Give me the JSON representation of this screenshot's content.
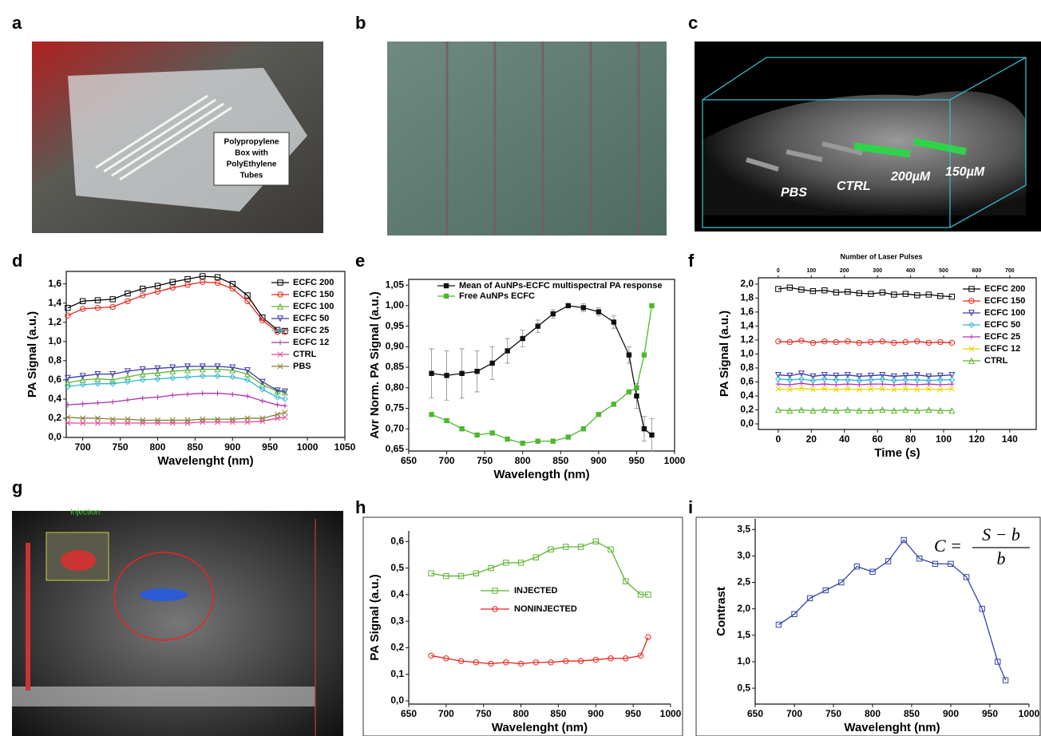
{
  "panel_labels": [
    "a",
    "b",
    "c",
    "d",
    "e",
    "f",
    "g",
    "h",
    "i"
  ],
  "photo_a": {
    "caption": [
      "Polypropylene",
      "Box with",
      "PolyEthylene",
      "Tubes"
    ]
  },
  "image_c": {
    "labels": [
      "PBS",
      "CTRL",
      "200µM",
      "150µM"
    ]
  },
  "image_g": {
    "label": "Injection"
  },
  "chart_data": [
    {
      "type": "line",
      "xlabel": "Wavelenght (nm)",
      "ylabel": "PA Signal (a.u.)",
      "x": [
        680,
        700,
        720,
        740,
        760,
        780,
        800,
        820,
        840,
        860,
        880,
        900,
        920,
        940,
        960,
        970
      ],
      "xlim": [
        678,
        1050
      ],
      "xticks": [
        700,
        750,
        800,
        850,
        900,
        950,
        1000,
        1050
      ],
      "ylim": [
        0,
        1.73
      ],
      "yticks": [
        {
          "value": 0,
          "label": "0,0"
        },
        {
          "value": 0.2,
          "label": "0,2"
        },
        {
          "value": 0.4,
          "label": "0,4"
        },
        {
          "value": 0.6,
          "label": "0,6"
        },
        {
          "value": 0.8,
          "label": "0,8"
        },
        {
          "value": 1.0,
          "label": "1,0"
        },
        {
          "value": 1.2,
          "label": "1,2"
        },
        {
          "value": 1.4,
          "label": "1,4"
        },
        {
          "value": 1.6,
          "label": "1,6"
        }
      ],
      "legend": "upper-right",
      "series": [
        {
          "name": "ECFC 200",
          "color": "#000000",
          "marker": "square",
          "values": [
            1.35,
            1.42,
            1.43,
            1.44,
            1.5,
            1.55,
            1.58,
            1.62,
            1.65,
            1.68,
            1.67,
            1.6,
            1.48,
            1.25,
            1.12,
            1.11
          ]
        },
        {
          "name": "ECFC 150",
          "color": "#e8261c",
          "marker": "circle",
          "values": [
            1.27,
            1.34,
            1.35,
            1.36,
            1.42,
            1.48,
            1.52,
            1.56,
            1.59,
            1.62,
            1.61,
            1.55,
            1.42,
            1.22,
            1.1,
            1.1
          ]
        },
        {
          "name": "ECFC 100",
          "color": "#5ab52e",
          "marker": "triangle",
          "values": [
            0.57,
            0.6,
            0.61,
            0.6,
            0.63,
            0.66,
            0.67,
            0.69,
            0.7,
            0.71,
            0.71,
            0.7,
            0.66,
            0.55,
            0.48,
            0.47
          ]
        },
        {
          "name": "ECFC 50",
          "color": "#3a3aa8",
          "marker": "triangle-down",
          "values": [
            0.62,
            0.64,
            0.66,
            0.66,
            0.69,
            0.71,
            0.72,
            0.73,
            0.74,
            0.74,
            0.74,
            0.73,
            0.7,
            0.58,
            0.49,
            0.48
          ]
        },
        {
          "name": "ECFC 25",
          "color": "#36b8d0",
          "marker": "diamond",
          "values": [
            0.53,
            0.55,
            0.56,
            0.56,
            0.58,
            0.6,
            0.61,
            0.62,
            0.63,
            0.64,
            0.64,
            0.63,
            0.6,
            0.5,
            0.42,
            0.4
          ]
        },
        {
          "name": "ECFC 12",
          "color": "#b030b0",
          "marker": "plus",
          "values": [
            0.34,
            0.35,
            0.36,
            0.37,
            0.39,
            0.41,
            0.42,
            0.44,
            0.45,
            0.46,
            0.46,
            0.45,
            0.43,
            0.38,
            0.34,
            0.33
          ]
        },
        {
          "name": "CTRL",
          "color": "#e8479a",
          "marker": "cross",
          "values": [
            0.15,
            0.15,
            0.15,
            0.15,
            0.15,
            0.15,
            0.15,
            0.15,
            0.15,
            0.16,
            0.16,
            0.16,
            0.16,
            0.17,
            0.2,
            0.21
          ]
        },
        {
          "name": "PBS",
          "color": "#808030",
          "marker": "cross",
          "values": [
            0.21,
            0.2,
            0.2,
            0.19,
            0.19,
            0.18,
            0.18,
            0.18,
            0.18,
            0.19,
            0.19,
            0.19,
            0.2,
            0.2,
            0.24,
            0.26
          ]
        }
      ]
    },
    {
      "type": "line",
      "xlabel": "Wavelength (nm)",
      "ylabel": "Avr Norm. PA Signal (a.u.)",
      "x": [
        680,
        700,
        720,
        740,
        760,
        780,
        800,
        820,
        840,
        860,
        880,
        900,
        920,
        940,
        950,
        960,
        970
      ],
      "xlim": [
        650,
        1000
      ],
      "xticks": [
        650,
        700,
        750,
        800,
        850,
        900,
        950,
        1000
      ],
      "ylim": [
        0.646,
        1.064
      ],
      "yticks": [
        {
          "value": 0.65,
          "label": "0,65"
        },
        {
          "value": 0.7,
          "label": "0,70"
        },
        {
          "value": 0.75,
          "label": "0,75"
        },
        {
          "value": 0.8,
          "label": "0,80"
        },
        {
          "value": 0.85,
          "label": "0,85"
        },
        {
          "value": 0.9,
          "label": "0,90"
        },
        {
          "value": 0.95,
          "label": "0,95"
        },
        {
          "value": 1.0,
          "label": "1,00"
        },
        {
          "value": 1.05,
          "label": "1,05"
        }
      ],
      "legend": "upper-left",
      "series": [
        {
          "name": "Mean of AuNPs-ECFC multispectral PA response",
          "color": "#111111",
          "marker": "filled-square",
          "values": [
            0.835,
            0.83,
            0.835,
            0.84,
            0.86,
            0.89,
            0.92,
            0.95,
            0.98,
            1.0,
            0.995,
            0.985,
            0.96,
            0.88,
            0.78,
            0.7,
            0.685
          ],
          "errors": [
            0.06,
            0.06,
            0.06,
            0.05,
            0.04,
            0.03,
            0.02,
            0.015,
            0.01,
            0.005,
            0.01,
            0.01,
            0.015,
            0.02,
            0.03,
            0.03,
            0.04
          ]
        },
        {
          "name": "Free AuNPs ECFC",
          "color": "#4cb82e",
          "marker": "filled-square",
          "values": [
            0.735,
            0.72,
            0.7,
            0.685,
            0.69,
            0.675,
            0.665,
            0.67,
            0.67,
            0.68,
            0.7,
            0.735,
            0.76,
            0.79,
            0.8,
            0.88,
            1.0
          ]
        }
      ]
    },
    {
      "type": "line",
      "xlabel": "Time (s)",
      "ylabel": "PA Signal (a.u.)",
      "x2label": "Number of Laser Pulses",
      "x": [
        0,
        7,
        14,
        21,
        28,
        35,
        42,
        49,
        56,
        63,
        70,
        77,
        84,
        91,
        98,
        105
      ],
      "xlim": [
        -12,
        156
      ],
      "xticks": [
        0,
        20,
        40,
        60,
        80,
        100,
        120,
        140
      ],
      "x2lim": [
        -60,
        780
      ],
      "x2ticks": [
        0,
        100,
        200,
        300,
        400,
        500,
        600,
        700
      ],
      "ylim": [
        -0.08,
        2.09
      ],
      "yticks": [
        {
          "value": 0,
          "label": "0,0"
        },
        {
          "value": 0.2,
          "label": "0,2"
        },
        {
          "value": 0.4,
          "label": "0,4"
        },
        {
          "value": 0.6,
          "label": "0,6"
        },
        {
          "value": 0.8,
          "label": "0,8"
        },
        {
          "value": 1.0,
          "label": "1,0"
        },
        {
          "value": 1.2,
          "label": "1,2"
        },
        {
          "value": 1.4,
          "label": "1,4"
        },
        {
          "value": 1.6,
          "label": "1,6"
        },
        {
          "value": 1.8,
          "label": "1,8"
        },
        {
          "value": 2.0,
          "label": "2,0"
        }
      ],
      "legend": "upper-right",
      "series": [
        {
          "name": "ECFC 200",
          "color": "#000000",
          "marker": "square",
          "values": [
            1.93,
            1.95,
            1.92,
            1.9,
            1.91,
            1.88,
            1.89,
            1.87,
            1.86,
            1.88,
            1.85,
            1.86,
            1.84,
            1.85,
            1.83,
            1.82
          ]
        },
        {
          "name": "ECFC 150",
          "color": "#e8261c",
          "marker": "circle",
          "values": [
            1.18,
            1.17,
            1.19,
            1.16,
            1.18,
            1.17,
            1.18,
            1.16,
            1.17,
            1.18,
            1.16,
            1.17,
            1.18,
            1.16,
            1.17,
            1.16
          ]
        },
        {
          "name": "ECFC 100",
          "color": "#3a3aa8",
          "marker": "triangle-down",
          "values": [
            0.7,
            0.69,
            0.72,
            0.68,
            0.7,
            0.69,
            0.7,
            0.68,
            0.69,
            0.7,
            0.68,
            0.69,
            0.7,
            0.68,
            0.69,
            0.7
          ]
        },
        {
          "name": "ECFC 50",
          "color": "#36b8d0",
          "marker": "diamond",
          "values": [
            0.64,
            0.63,
            0.64,
            0.62,
            0.64,
            0.63,
            0.63,
            0.62,
            0.63,
            0.64,
            0.62,
            0.63,
            0.63,
            0.62,
            0.63,
            0.63
          ]
        },
        {
          "name": "ECFC 25",
          "color": "#b030b0",
          "marker": "plus",
          "values": [
            0.57,
            0.56,
            0.58,
            0.56,
            0.57,
            0.56,
            0.57,
            0.56,
            0.57,
            0.57,
            0.56,
            0.57,
            0.56,
            0.57,
            0.56,
            0.57
          ]
        },
        {
          "name": "ECFC 12",
          "color": "#e0d800",
          "marker": "cross",
          "values": [
            0.5,
            0.49,
            0.51,
            0.49,
            0.5,
            0.49,
            0.5,
            0.49,
            0.5,
            0.5,
            0.49,
            0.5,
            0.49,
            0.5,
            0.49,
            0.5
          ]
        },
        {
          "name": "CTRL",
          "color": "#5ab52e",
          "marker": "triangle",
          "values": [
            0.2,
            0.19,
            0.2,
            0.19,
            0.2,
            0.19,
            0.2,
            0.19,
            0.19,
            0.2,
            0.19,
            0.2,
            0.19,
            0.2,
            0.19,
            0.19
          ]
        }
      ]
    },
    {
      "type": "line",
      "xlabel": "Wavelenght (nm)",
      "ylabel": "PA Signal (a.u.)",
      "x": [
        680,
        700,
        720,
        740,
        760,
        780,
        800,
        820,
        840,
        860,
        880,
        900,
        920,
        940,
        960,
        970
      ],
      "xlim": [
        650,
        1000
      ],
      "xticks": [
        650,
        700,
        750,
        800,
        850,
        900,
        950,
        1000
      ],
      "ylim": [
        -0.012,
        0.64
      ],
      "yticks": [
        {
          "value": 0,
          "label": "0,0"
        },
        {
          "value": 0.1,
          "label": "0,1"
        },
        {
          "value": 0.2,
          "label": "0,2"
        },
        {
          "value": 0.3,
          "label": "0,3"
        },
        {
          "value": 0.4,
          "label": "0,4"
        },
        {
          "value": 0.5,
          "label": "0,5"
        },
        {
          "value": 0.6,
          "label": "0,6"
        }
      ],
      "legend": "center",
      "series": [
        {
          "name": "INJECTED",
          "color": "#5ab52e",
          "marker": "square",
          "values": [
            0.48,
            0.47,
            0.47,
            0.48,
            0.5,
            0.52,
            0.52,
            0.54,
            0.57,
            0.58,
            0.58,
            0.6,
            0.57,
            0.45,
            0.4,
            0.4
          ]
        },
        {
          "name": "NONINJECTED",
          "color": "#e8261c",
          "marker": "circle",
          "values": [
            0.17,
            0.16,
            0.15,
            0.145,
            0.14,
            0.145,
            0.14,
            0.145,
            0.145,
            0.15,
            0.15,
            0.155,
            0.16,
            0.16,
            0.17,
            0.24
          ]
        }
      ]
    },
    {
      "type": "line",
      "xlabel": "Wavelenght (nm)",
      "ylabel": "Contrast",
      "annotation": {
        "lhs": "C =",
        "numerator": "S − b",
        "denominator": "b"
      },
      "x": [
        680,
        700,
        720,
        740,
        760,
        780,
        800,
        820,
        840,
        860,
        880,
        900,
        920,
        940,
        960,
        970
      ],
      "xlim": [
        650,
        1000
      ],
      "xticks": [
        650,
        700,
        750,
        800,
        850,
        900,
        950,
        1000
      ],
      "ylim": [
        0.2,
        3.7
      ],
      "yticks": [
        {
          "value": 0.5,
          "label": "0,5"
        },
        {
          "value": 1.0,
          "label": "1,0"
        },
        {
          "value": 1.5,
          "label": "1,5"
        },
        {
          "value": 2.0,
          "label": "2,0"
        },
        {
          "value": 2.5,
          "label": "2,5"
        },
        {
          "value": 3.0,
          "label": "3,0"
        },
        {
          "value": 3.5,
          "label": "3,5"
        }
      ],
      "series": [
        {
          "color": "#3344aa",
          "marker": "square",
          "values": [
            1.7,
            1.9,
            2.2,
            2.35,
            2.5,
            2.8,
            2.7,
            2.9,
            3.3,
            2.95,
            2.85,
            2.85,
            2.6,
            2.0,
            1.0,
            0.65
          ]
        }
      ]
    }
  ]
}
